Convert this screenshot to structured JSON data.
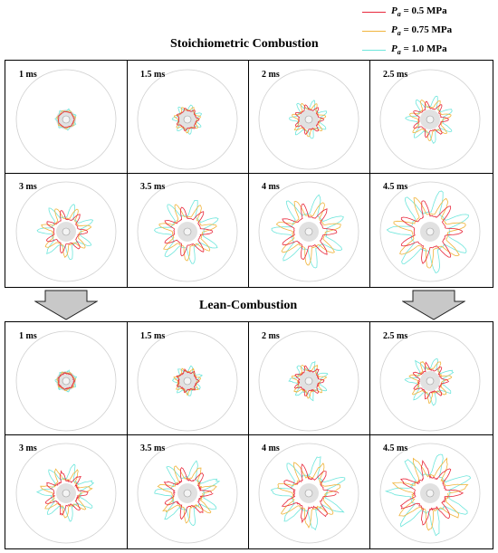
{
  "legend": [
    {
      "symbol": "P",
      "sub": "a",
      "value": "= 0.5 MPa",
      "color": "#e8283c"
    },
    {
      "symbol": "P",
      "sub": "a",
      "value": "= 0.75 MPa",
      "color": "#f0b43c"
    },
    {
      "symbol": "P",
      "sub": "a",
      "value": "= 1.0 MPa",
      "color": "#6ee6dc"
    }
  ],
  "sections": [
    {
      "title": "Stoichiometric Combustion",
      "mode": "stoich",
      "panels": [
        "1 ms",
        "1.5 ms",
        "2 ms",
        "2.5 ms",
        "3 ms",
        "3.5 ms",
        "4 ms",
        "4.5 ms"
      ]
    },
    {
      "title": "Lean-Combustion",
      "mode": "lean",
      "panels": [
        "1 ms",
        "1.5 ms",
        "2 ms",
        "2.5 ms",
        "3 ms",
        "3.5 ms",
        "4 ms",
        "4.5 ms"
      ]
    }
  ],
  "arrows": [
    "down-arrow-left",
    "down-arrow-right"
  ]
}
